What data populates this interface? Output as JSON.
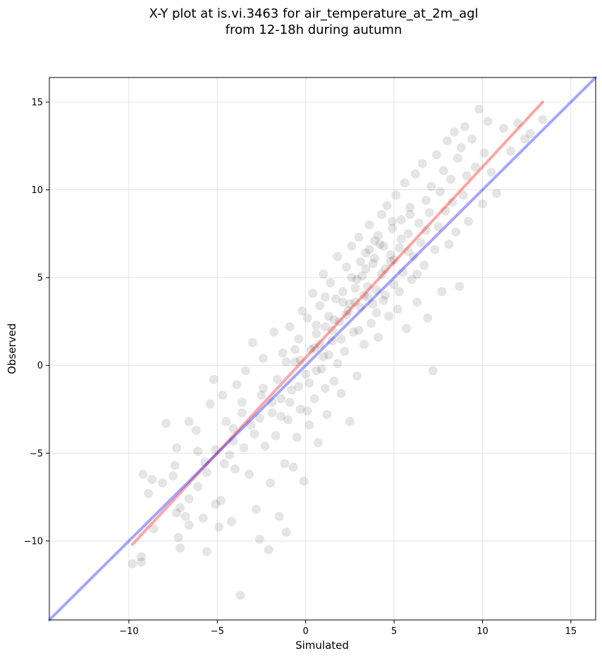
{
  "chart_data": {
    "type": "scatter",
    "title_line1": "X-Y plot at is.vi.3463 for air_temperature_at_2m_agl",
    "title_line2": "from 12-18h during autumn",
    "xlabel": "Simulated",
    "ylabel": "Observed",
    "xlim": [
      -14.5,
      16.4
    ],
    "ylim": [
      -14.5,
      16.4
    ],
    "xticks": [
      -10,
      -5,
      0,
      5,
      10,
      15
    ],
    "yticks": [
      -10,
      -5,
      0,
      5,
      10,
      15
    ],
    "xtick_labels": [
      "−10",
      "−5",
      "0",
      "5",
      "10",
      "15"
    ],
    "ytick_labels": [
      "−10",
      "−5",
      "0",
      "5",
      "10",
      "15"
    ],
    "grid": true,
    "point_color": "#000000",
    "point_opacity": 0.1,
    "points": [
      [
        -9.8,
        -11.3
      ],
      [
        -9.3,
        -11.2
      ],
      [
        -9.3,
        -10.9
      ],
      [
        -9.2,
        -6.2
      ],
      [
        -8.9,
        -7.3
      ],
      [
        -8.7,
        -6.5
      ],
      [
        -8.6,
        -9.3
      ],
      [
        -8.1,
        -6.7
      ],
      [
        -7.9,
        -3.3
      ],
      [
        -7.5,
        -6.3
      ],
      [
        -7.3,
        -4.7
      ],
      [
        -7.4,
        -5.7
      ],
      [
        -7.2,
        -9.8
      ],
      [
        -7.1,
        -10.4
      ],
      [
        -7.3,
        -8.4
      ],
      [
        -6.8,
        -8.6
      ],
      [
        -6.6,
        -9.1
      ],
      [
        -6.6,
        -3.2
      ],
      [
        -6.2,
        -3.7
      ],
      [
        -6.1,
        -4.9
      ],
      [
        -5.8,
        -8.7
      ],
      [
        -5.7,
        -5.5
      ],
      [
        -5.6,
        -10.6
      ],
      [
        -5.4,
        -2.2
      ],
      [
        -5.2,
        -0.8
      ],
      [
        -5.1,
        -7.9
      ],
      [
        -4.9,
        -9.2
      ],
      [
        -4.8,
        -7.7
      ],
      [
        -4.7,
        -1.7
      ],
      [
        -4.5,
        -3.2
      ],
      [
        -4.3,
        -5.1
      ],
      [
        -4.2,
        -8.9
      ],
      [
        -4.1,
        -3.6
      ],
      [
        -4.0,
        -5.9
      ],
      [
        -3.9,
        -1.1
      ],
      [
        -3.7,
        -13.1
      ],
      [
        -3.6,
        -2.7
      ],
      [
        -3.5,
        -4.7
      ],
      [
        -3.4,
        -0.3
      ],
      [
        -3.2,
        -6.2
      ],
      [
        -3.0,
        1.3
      ],
      [
        -2.9,
        -3.9
      ],
      [
        -2.8,
        -8.2
      ],
      [
        -2.6,
        -9.9
      ],
      [
        -2.5,
        -1.7
      ],
      [
        -2.4,
        0.4
      ],
      [
        -2.3,
        -4.6
      ],
      [
        -2.1,
        -10.5
      ],
      [
        -2.0,
        -6.7
      ],
      [
        -1.9,
        -2.1
      ],
      [
        -1.8,
        1.9
      ],
      [
        -1.7,
        -4.0
      ],
      [
        -1.6,
        -0.8
      ],
      [
        -1.5,
        -8.6
      ],
      [
        -1.4,
        -2.9
      ],
      [
        -1.3,
        0.7
      ],
      [
        -1.2,
        -5.6
      ],
      [
        -1.1,
        -9.5
      ],
      [
        -1.0,
        -3.1
      ],
      [
        -0.9,
        2.2
      ],
      [
        -0.8,
        -1.4
      ],
      [
        -0.7,
        -5.8
      ],
      [
        -0.6,
        0.2
      ],
      [
        -0.5,
        -4.1
      ],
      [
        -0.4,
        1.5
      ],
      [
        -0.3,
        -2.5
      ],
      [
        -0.2,
        3.1
      ],
      [
        -0.1,
        -6.6
      ],
      [
        0.0,
        -0.5
      ],
      [
        0.1,
        2.7
      ],
      [
        0.2,
        -3.4
      ],
      [
        0.3,
        0.9
      ],
      [
        0.4,
        4.1
      ],
      [
        0.5,
        -1.9
      ],
      [
        0.6,
        1.8
      ],
      [
        0.7,
        -4.4
      ],
      [
        0.8,
        3.4
      ],
      [
        0.9,
        -0.2
      ],
      [
        1.0,
        5.2
      ],
      [
        1.1,
        2.2
      ],
      [
        1.2,
        -2.8
      ],
      [
        1.3,
        0.6
      ],
      [
        1.4,
        4.7
      ],
      [
        1.5,
        1.4
      ],
      [
        1.6,
        -0.9
      ],
      [
        1.7,
        3.8
      ],
      [
        1.8,
        6.2
      ],
      [
        1.9,
        2.5
      ],
      [
        2.0,
        -1.6
      ],
      [
        2.1,
        4.2
      ],
      [
        2.2,
        0.8
      ],
      [
        2.3,
        5.6
      ],
      [
        2.4,
        3.1
      ],
      [
        2.5,
        -3.2
      ],
      [
        2.6,
        6.8
      ],
      [
        2.7,
        1.9
      ],
      [
        2.8,
        4.4
      ],
      [
        2.9,
        -0.6
      ],
      [
        3.0,
        7.3
      ],
      [
        3.1,
        3.3
      ],
      [
        3.2,
        5.1
      ],
      [
        3.3,
        1.2
      ],
      [
        3.4,
        6.4
      ],
      [
        3.5,
        3.9
      ],
      [
        3.6,
        8.0
      ],
      [
        3.7,
        2.4
      ],
      [
        3.8,
        5.8
      ],
      [
        3.9,
        7.1
      ],
      [
        4.0,
        4.3
      ],
      [
        4.1,
        1.6
      ],
      [
        4.2,
        6.9
      ],
      [
        4.3,
        8.6
      ],
      [
        4.4,
        3.7
      ],
      [
        4.5,
        5.5
      ],
      [
        4.6,
        9.1
      ],
      [
        4.7,
        2.8
      ],
      [
        4.8,
        6.3
      ],
      [
        4.9,
        7.8
      ],
      [
        5.0,
        4.6
      ],
      [
        5.1,
        9.7
      ],
      [
        5.2,
        3.2
      ],
      [
        5.3,
        6.7
      ],
      [
        5.4,
        8.3
      ],
      [
        5.5,
        5.3
      ],
      [
        5.6,
        10.4
      ],
      [
        5.7,
        2.1
      ],
      [
        5.8,
        7.5
      ],
      [
        5.9,
        9.0
      ],
      [
        6.0,
        4.9
      ],
      [
        6.1,
        6.2
      ],
      [
        6.2,
        10.9
      ],
      [
        6.3,
        3.6
      ],
      [
        6.4,
        8.1
      ],
      [
        6.5,
        7.0
      ],
      [
        6.6,
        11.5
      ],
      [
        6.7,
        5.7
      ],
      [
        6.8,
        9.4
      ],
      [
        6.9,
        2.7
      ],
      [
        7.0,
        8.7
      ],
      [
        7.1,
        10.2
      ],
      [
        7.2,
        -0.3
      ],
      [
        7.3,
        6.6
      ],
      [
        7.4,
        12.0
      ],
      [
        7.5,
        7.9
      ],
      [
        7.6,
        9.9
      ],
      [
        7.7,
        4.2
      ],
      [
        7.8,
        11.1
      ],
      [
        7.9,
        8.8
      ],
      [
        8.0,
        12.8
      ],
      [
        8.1,
        6.9
      ],
      [
        8.2,
        10.6
      ],
      [
        8.3,
        9.3
      ],
      [
        8.4,
        13.3
      ],
      [
        8.5,
        7.6
      ],
      [
        8.6,
        11.8
      ],
      [
        8.7,
        4.5
      ],
      [
        8.8,
        12.4
      ],
      [
        8.9,
        9.7
      ],
      [
        9.0,
        13.6
      ],
      [
        9.1,
        10.8
      ],
      [
        9.2,
        8.2
      ],
      [
        9.4,
        12.9
      ],
      [
        9.6,
        11.3
      ],
      [
        9.8,
        14.6
      ],
      [
        10.0,
        9.2
      ],
      [
        10.1,
        12.1
      ],
      [
        10.3,
        13.9
      ],
      [
        10.5,
        11.0
      ],
      [
        10.8,
        9.8
      ],
      [
        11.2,
        13.5
      ],
      [
        11.6,
        12.2
      ],
      [
        12.0,
        13.8
      ],
      [
        12.4,
        12.9
      ],
      [
        12.7,
        13.2
      ],
      [
        13.4,
        14.0
      ],
      [
        0.5,
        1.0
      ],
      [
        1.0,
        0.5
      ],
      [
        1.5,
        2.0
      ],
      [
        2.0,
        1.5
      ],
      [
        2.5,
        3.5
      ],
      [
        3.0,
        2.0
      ],
      [
        3.5,
        4.5
      ],
      [
        4.0,
        3.0
      ],
      [
        4.5,
        4.0
      ],
      [
        5.0,
        6.0
      ],
      [
        -0.3,
        0.3
      ],
      [
        0.2,
        -1.0
      ],
      [
        0.8,
        1.2
      ],
      [
        1.3,
        2.8
      ],
      [
        1.8,
        0.1
      ],
      [
        2.3,
        2.9
      ],
      [
        2.8,
        3.6
      ],
      [
        3.3,
        4.0
      ],
      [
        3.8,
        3.5
      ],
      [
        4.3,
        5.2
      ],
      [
        4.8,
        5.9
      ],
      [
        5.3,
        4.2
      ],
      [
        5.8,
        6.5
      ],
      [
        6.3,
        5.2
      ],
      [
        6.8,
        7.7
      ],
      [
        3.1,
        5.9
      ],
      [
        3.6,
        6.6
      ],
      [
        4.1,
        7.4
      ],
      [
        2.6,
        5.0
      ],
      [
        2.1,
        3.6
      ],
      [
        1.6,
        2.6
      ],
      [
        1.1,
        3.9
      ],
      [
        0.6,
        2.3
      ],
      [
        3.9,
        6.1
      ],
      [
        4.4,
        6.8
      ],
      [
        4.9,
        8.2
      ],
      [
        5.4,
        7.2
      ],
      [
        5.9,
        8.6
      ],
      [
        2.9,
        4.9
      ],
      [
        3.4,
        5.5
      ],
      [
        -1.9,
        -2.7
      ],
      [
        -2.4,
        -1.3
      ],
      [
        -1.4,
        -1.9
      ],
      [
        -0.9,
        -2.1
      ],
      [
        -0.4,
        -1.2
      ],
      [
        0.1,
        -2.6
      ],
      [
        0.6,
        -0.3
      ],
      [
        1.1,
        -1.3
      ],
      [
        -1.1,
        0.2
      ],
      [
        -0.6,
        0.9
      ],
      [
        -3.1,
        -3.4
      ],
      [
        -2.6,
        -3.0
      ],
      [
        -3.6,
        -2.1
      ],
      [
        -4.1,
        -4.3
      ],
      [
        -4.6,
        -5.6
      ],
      [
        -5.1,
        -4.8
      ],
      [
        -5.6,
        -6.1
      ],
      [
        -6.1,
        -6.9
      ],
      [
        -6.6,
        -7.6
      ],
      [
        -7.1,
        -8.1
      ]
    ],
    "line1": {
      "color": "#ff0000",
      "opacity": 0.35,
      "x": [
        -9.8,
        13.4
      ],
      "y": [
        -10.2,
        15.0
      ]
    },
    "line2": {
      "color": "#0000ff",
      "opacity": 0.35,
      "x": [
        -14.5,
        16.4
      ],
      "y": [
        -14.5,
        16.4
      ]
    }
  }
}
